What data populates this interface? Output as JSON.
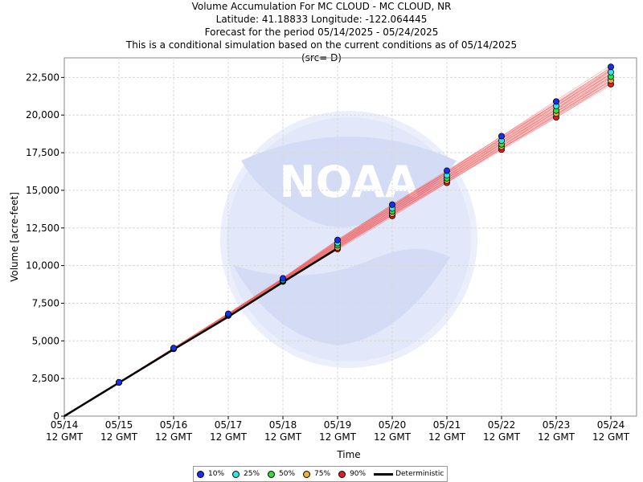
{
  "header": {
    "line1": "Volume Accumulation For MC CLOUD - MC CLOUD, NR",
    "line2": "Latitude: 41.18833 Longitude: -122.064445",
    "line3": "Forecast for the period 05/14/2025 - 05/24/2025",
    "line4": "This is a conditional simulation based on the current conditions as of 05/14/2025",
    "line5": "(src= D)"
  },
  "colors": {
    "p10": "#1430f0",
    "p25": "#28e8e8",
    "p50": "#33dd33",
    "p75": "#f0b030",
    "p90": "#e02020",
    "traces": "#f06060",
    "deterministic": "#000000",
    "grid": "#d8d8d8"
  },
  "legend": [
    {
      "label": "10%",
      "key": "p10",
      "icon": "circle-marker"
    },
    {
      "label": "25%",
      "key": "p25",
      "icon": "circle-marker"
    },
    {
      "label": "50%",
      "key": "p50",
      "icon": "circle-marker"
    },
    {
      "label": "75%",
      "key": "p75",
      "icon": "circle-marker"
    },
    {
      "label": "90%",
      "key": "p90",
      "icon": "circle-marker"
    },
    {
      "label": "Deterministic",
      "key": "deterministic",
      "icon": "line-marker"
    }
  ],
  "chart_data": {
    "type": "line",
    "xlabel": "Time",
    "ylabel": "Volume [acre-feet]",
    "ylim": [
      0,
      23800
    ],
    "y_ticks": [
      0,
      2500,
      5000,
      7500,
      10000,
      12500,
      15000,
      17500,
      20000,
      22500
    ],
    "y_tick_labels": [
      "0",
      "2,500",
      "5,000",
      "7,500",
      "10,000",
      "12,500",
      "15,000",
      "17,500",
      "20,000",
      "22,500"
    ],
    "x_tick_labels": [
      [
        "05/14",
        "12 GMT"
      ],
      [
        "05/15",
        "12 GMT"
      ],
      [
        "05/16",
        "12 GMT"
      ],
      [
        "05/17",
        "12 GMT"
      ],
      [
        "05/18",
        "12 GMT"
      ],
      [
        "05/19",
        "12 GMT"
      ],
      [
        "05/20",
        "12 GMT"
      ],
      [
        "05/21",
        "12 GMT"
      ],
      [
        "05/22",
        "12 GMT"
      ],
      [
        "05/23",
        "12 GMT"
      ],
      [
        "05/24",
        "12 GMT"
      ]
    ],
    "grid": true,
    "legend_position": "bottom",
    "watermark": "NOAA",
    "x": [
      "05/14 12 GMT",
      "05/15 12 GMT",
      "05/16 12 GMT",
      "05/17 12 GMT",
      "05/18 12 GMT",
      "05/19 12 GMT",
      "05/20 12 GMT",
      "05/21 12 GMT",
      "05/22 12 GMT",
      "05/23 12 GMT",
      "05/24 12 GMT"
    ],
    "series": [
      {
        "name": "10%",
        "key": "p10",
        "values": [
          0,
          2250,
          4520,
          6800,
          9150,
          11700,
          14050,
          16300,
          18600,
          20900,
          23200
        ]
      },
      {
        "name": "25%",
        "key": "p25",
        "values": [
          0,
          2250,
          4500,
          6750,
          9050,
          11500,
          13800,
          16000,
          18300,
          20600,
          22850
        ]
      },
      {
        "name": "50%",
        "key": "p50",
        "values": [
          0,
          2240,
          4490,
          6720,
          9000,
          11350,
          13600,
          15800,
          18050,
          20300,
          22550
        ]
      },
      {
        "name": "75%",
        "key": "p75",
        "values": [
          0,
          2240,
          4480,
          6700,
          8970,
          11200,
          13450,
          15650,
          17900,
          20100,
          22300
        ]
      },
      {
        "name": "90%",
        "key": "p90",
        "values": [
          0,
          2230,
          4470,
          6680,
          8940,
          11100,
          13300,
          15500,
          17700,
          19850,
          22050
        ]
      }
    ],
    "deterministic": {
      "name": "Deterministic",
      "x_end_index": 5,
      "values": [
        0,
        2220,
        4430,
        6600,
        8900,
        11150
      ]
    },
    "ensemble_traces_count": 30
  }
}
